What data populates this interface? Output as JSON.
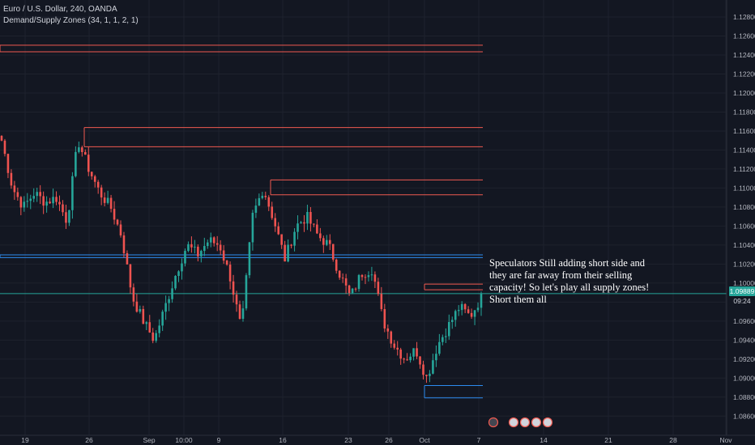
{
  "header": {
    "symbol_line": "Euro / U.S. Dollar, 240, OANDA",
    "indicator_line": "Demand/Supply Zones (34, 1, 1, 2, 1)"
  },
  "annotation": "Speculators Still adding short side and they are far away from their selling capacity! So let's play all supply zones! Short them all",
  "price_tags": {
    "last_price": "1.09889",
    "countdown": "09:24"
  },
  "colors": {
    "background": "#131722",
    "up_candle": "#26a69a",
    "down_candle": "#ef5350",
    "supply_zone": "#f05a50",
    "demand_zone": "#2d8cf0",
    "axis_text": "#b2b5be",
    "grid": "#1e222d"
  },
  "icons": [
    "economic-event-icon",
    "flag-icon",
    "flag-icon",
    "flag-icon",
    "flag-icon"
  ],
  "chart_data": {
    "type": "candlestick",
    "ylim": [
      1.085,
      1.1295
    ],
    "y_ticks": [
      "1.12800",
      "1.12600",
      "1.12400",
      "1.12200",
      "1.12000",
      "1.11800",
      "1.11600",
      "1.11400",
      "1.11200",
      "1.11000",
      "1.10800",
      "1.10600",
      "1.10400",
      "1.10200",
      "1.10000",
      "1.09800",
      "1.09600",
      "1.09400",
      "1.09200",
      "1.09000",
      "1.08800",
      "1.08600"
    ],
    "x_ticks": [
      "19",
      "26",
      "Sep",
      "10:00",
      "9",
      "16",
      "23",
      "26",
      "Oct",
      "7",
      "14",
      "21",
      "28",
      "Nov"
    ],
    "close_series_keypoints": [
      [
        "19",
        1.115
      ],
      [
        "19",
        1.11
      ],
      [
        "19",
        1.108
      ],
      [
        "19",
        1.1095
      ],
      [
        "19",
        1.1085
      ],
      [
        "19",
        1.109
      ],
      [
        "26",
        1.1065
      ],
      [
        "26",
        1.115
      ],
      [
        "26",
        1.112
      ],
      [
        "26",
        1.1095
      ],
      [
        "26",
        1.108
      ],
      [
        "26",
        1.105
      ],
      [
        "Sep",
        1.0985
      ],
      [
        "Sep",
        1.096
      ],
      [
        "Sep",
        1.094
      ],
      [
        "Sep",
        1.0975
      ],
      [
        "10:00",
        1.101
      ],
      [
        "10:00",
        1.104
      ],
      [
        "9",
        1.103
      ],
      [
        "9",
        1.1045
      ],
      [
        "9",
        1.104
      ],
      [
        "9",
        1.1005
      ],
      [
        "9",
        1.095
      ],
      [
        "9",
        1.107
      ],
      [
        "16",
        1.11
      ],
      [
        "16",
        1.1065
      ],
      [
        "16",
        1.1025
      ],
      [
        "16",
        1.106
      ],
      [
        "16",
        1.107
      ],
      [
        "16",
        1.105
      ],
      [
        "23",
        1.104
      ],
      [
        "23",
        1.101
      ],
      [
        "23",
        1.0985
      ],
      [
        "23",
        1.101
      ],
      [
        "23",
        1.1015
      ],
      [
        "23",
        1.096
      ],
      [
        "26",
        1.0935
      ],
      [
        "26",
        1.092
      ],
      [
        "26",
        1.093
      ],
      [
        "Oct",
        1.09
      ],
      [
        "Oct",
        1.0935
      ],
      [
        "Oct",
        1.0955
      ],
      [
        "7",
        1.0975
      ],
      [
        "7",
        1.0965
      ],
      [
        "7",
        1.0985
      ]
    ],
    "last_price": 1.09889,
    "supply_zones": [
      {
        "top": 1.12503,
        "bottom": 1.12434,
        "start": "19",
        "end": "7"
      },
      {
        "top": 1.11637,
        "bottom": 1.11434,
        "start": "26",
        "end": "7"
      },
      {
        "top": 1.11085,
        "bottom": 1.10929,
        "start": "16",
        "end": "7"
      },
      {
        "top": 1.09989,
        "bottom": 1.0993,
        "start": "Oct",
        "end": "7"
      }
    ],
    "demand_zones": [
      {
        "top": 1.10297,
        "bottom": 1.10268,
        "start": "19",
        "end": "7"
      },
      {
        "top": 1.08922,
        "bottom": 1.08792,
        "start": "Oct",
        "end": "7"
      }
    ],
    "grid": true,
    "legend": "none"
  }
}
